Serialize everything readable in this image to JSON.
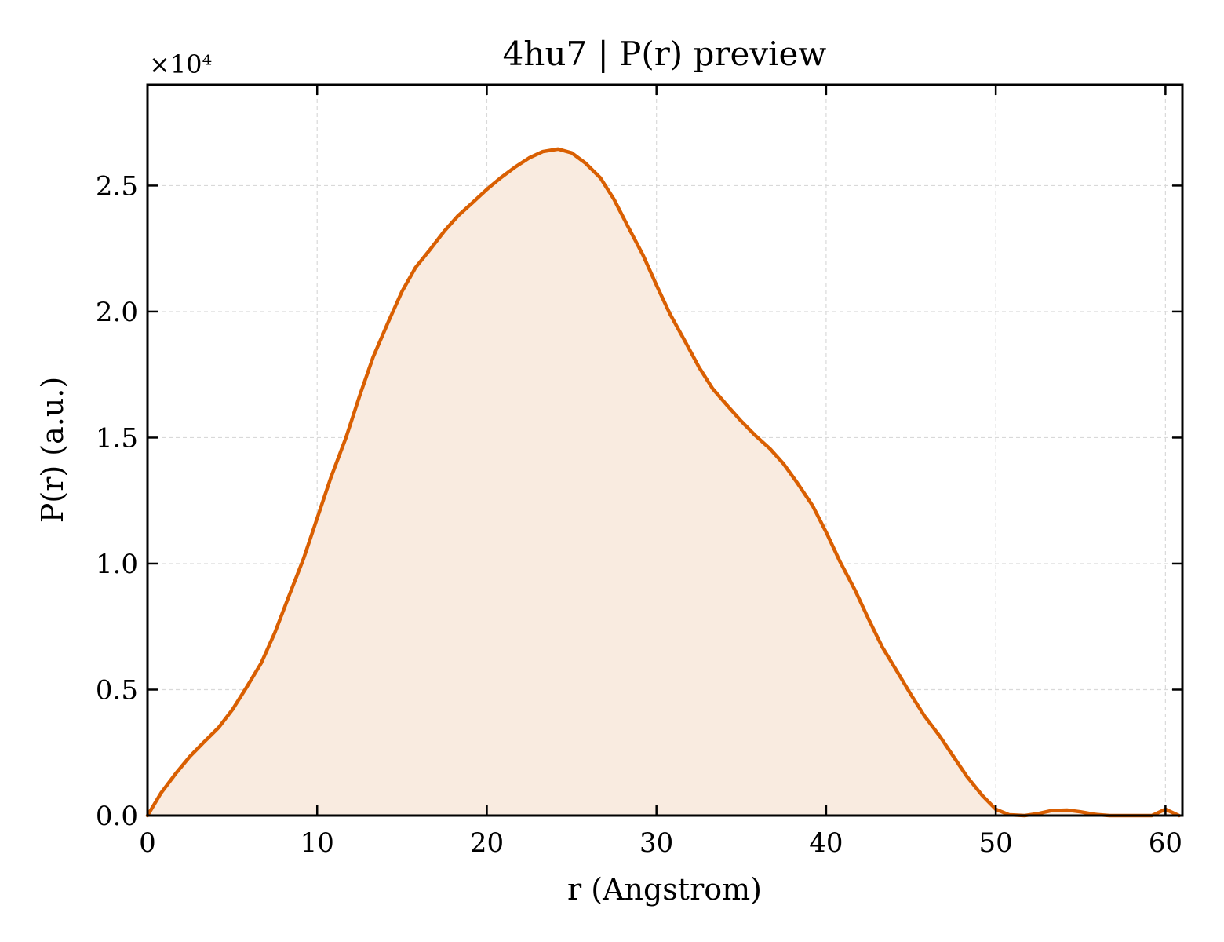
{
  "chart_data": {
    "type": "area",
    "title": "4hu7 | P(r) preview",
    "xlabel": "r (Angstrom)",
    "ylabel": "P(r) (a.u.)",
    "y_multiplier_label": "×10⁴",
    "y_multiplier": 10000,
    "xlim": [
      0,
      61
    ],
    "ylim": [
      0,
      29000
    ],
    "x_ticks": [
      0,
      10,
      20,
      30,
      40,
      50,
      60
    ],
    "x_tick_labels": [
      "0",
      "10",
      "20",
      "30",
      "40",
      "50",
      "60"
    ],
    "y_ticks": [
      0,
      5000,
      10000,
      15000,
      20000,
      25000
    ],
    "y_tick_labels": [
      "0.0",
      "0.5",
      "1.0",
      "1.5",
      "2.0",
      "2.5"
    ],
    "grid": true,
    "line_color": "#d95f02",
    "fill_color": "#f9ebe0",
    "series": [
      {
        "x": [
          0,
          0.8,
          1.7,
          2.5,
          3.3,
          4.2,
          5.0,
          5.8,
          6.7,
          7.5,
          8.3,
          9.2,
          10.0,
          10.8,
          11.7,
          12.5,
          13.3,
          14.2,
          15.0,
          15.8,
          16.7,
          17.5,
          18.3,
          19.2,
          20.0,
          20.8,
          21.7,
          22.5,
          23.3,
          24.2,
          25.0,
          25.8,
          26.7,
          27.5,
          28.3,
          29.2,
          30.0,
          30.8,
          31.7,
          32.5,
          33.3,
          34.2,
          35.0,
          35.8,
          36.7,
          37.5,
          38.3,
          39.2,
          40.0,
          40.8,
          41.7,
          42.5,
          43.3,
          44.2,
          45.0,
          45.8,
          46.7,
          47.5,
          48.3,
          49.2,
          50.0,
          50.8,
          51.7,
          52.5,
          53.3,
          54.2,
          55.0,
          55.8,
          56.7,
          57.5,
          58.3,
          59.2,
          60.0,
          60.8
        ],
        "y": [
          0,
          900,
          1700,
          2350,
          2900,
          3500,
          4200,
          5050,
          6050,
          7250,
          8650,
          10200,
          11800,
          13400,
          15000,
          16650,
          18200,
          19600,
          20800,
          21750,
          22500,
          23200,
          23800,
          24350,
          24850,
          25300,
          25750,
          26100,
          26350,
          26450,
          26300,
          25900,
          25300,
          24450,
          23400,
          22250,
          21050,
          19900,
          18800,
          17800,
          16950,
          16250,
          15650,
          15100,
          14550,
          13950,
          13200,
          12300,
          11250,
          10100,
          8950,
          7800,
          6700,
          5700,
          4800,
          3950,
          3150,
          2350,
          1550,
          800,
          250,
          30,
          0,
          80,
          200,
          220,
          150,
          50,
          0,
          0,
          0,
          0,
          250,
          0
        ]
      }
    ]
  }
}
